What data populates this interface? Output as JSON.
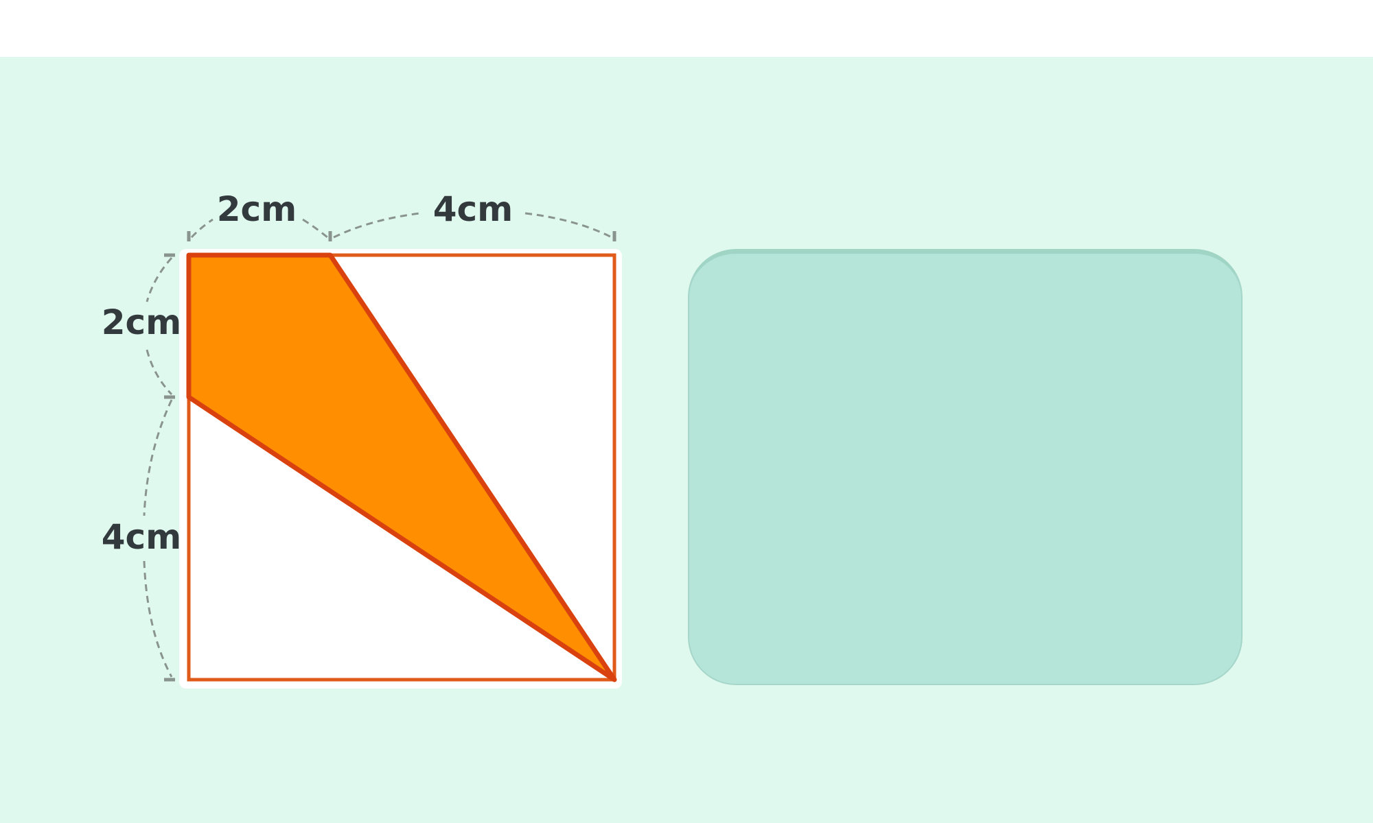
{
  "diagram": {
    "top_segments": [
      "2cm",
      "4cm"
    ],
    "left_segments": [
      "2cm",
      "4cm"
    ],
    "colors": {
      "background": "#e0f9ee",
      "square_fill": "#ffffff",
      "outline": "#e05a1a",
      "shaded_fill": "#ff8f00",
      "shaded_stroke": "#d9420f",
      "dim_line": "#8a948f",
      "label": "#333a3d",
      "panel": "#b5e5d9"
    }
  }
}
